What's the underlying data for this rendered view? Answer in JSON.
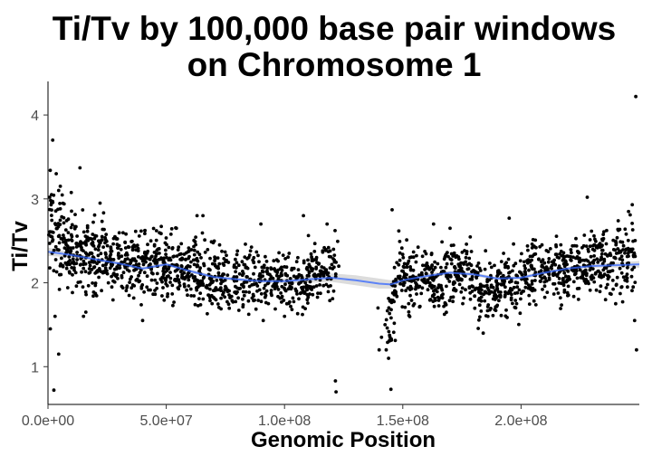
{
  "chart_data": {
    "type": "scatter",
    "title_lines": [
      "Ti/Tv by 100,000 base pair windows",
      "on Chromosome 1"
    ],
    "xlabel": "Genomic Position",
    "ylabel": "Ti/Tv",
    "xlim": [
      0,
      250000000
    ],
    "ylim": [
      0.55,
      4.4
    ],
    "x_ticks": [
      0,
      50000000,
      100000000,
      150000000,
      200000000
    ],
    "x_tick_labels": [
      "0.0e+00",
      "5.0e+07",
      "1.0e+08",
      "1.5e+08",
      "2.0e+08"
    ],
    "y_ticks": [
      1,
      2,
      3,
      4
    ],
    "y_tick_labels": [
      "1",
      "2",
      "3",
      "4"
    ],
    "grid": false,
    "point_color": "#000000",
    "smooth_color": "#3366ff",
    "ribbon_color": "#bfbfbf",
    "trend": {
      "name": "loess smooth",
      "x": [
        0,
        10000000,
        20000000,
        30000000,
        40000000,
        50000000,
        60000000,
        70000000,
        80000000,
        90000000,
        100000000,
        110000000,
        120000000,
        130000000,
        140000000,
        145000000,
        150000000,
        160000000,
        170000000,
        180000000,
        190000000,
        200000000,
        210000000,
        220000000,
        230000000,
        240000000,
        250000000
      ],
      "y": [
        2.37,
        2.33,
        2.28,
        2.23,
        2.17,
        2.22,
        2.14,
        2.07,
        2.04,
        2.02,
        2.02,
        2.04,
        2.06,
        2.03,
        1.99,
        1.98,
        2.03,
        2.08,
        2.12,
        2.1,
        2.05,
        2.06,
        2.12,
        2.17,
        2.2,
        2.21,
        2.22
      ],
      "ribbon_halfwidth": [
        0.05,
        0.03,
        0.02,
        0.02,
        0.02,
        0.02,
        0.02,
        0.02,
        0.02,
        0.02,
        0.03,
        0.04,
        0.05,
        0.06,
        0.06,
        0.05,
        0.04,
        0.03,
        0.02,
        0.02,
        0.02,
        0.02,
        0.02,
        0.02,
        0.02,
        0.03,
        0.04
      ]
    },
    "density": {
      "region_edges": [
        0,
        3000000,
        10000000,
        20000000,
        30000000,
        40000000,
        50000000,
        60000000,
        70000000,
        80000000,
        90000000,
        100000000,
        110000000,
        120000000,
        123000000,
        143000000,
        150000000,
        160000000,
        170000000,
        180000000,
        190000000,
        200000000,
        210000000,
        220000000,
        230000000,
        240000000,
        248500000
      ],
      "counts": [
        25,
        75,
        110,
        100,
        95,
        100,
        100,
        95,
        85,
        75,
        80,
        85,
        85,
        15,
        0,
        55,
        90,
        90,
        95,
        90,
        85,
        85,
        95,
        90,
        90,
        75
      ],
      "level": [
        2.65,
        2.5,
        2.35,
        2.3,
        2.25,
        2.2,
        2.15,
        2.1,
        2.05,
        2.05,
        2.05,
        2.0,
        2.15,
        2.2,
        0,
        1.7,
        2.05,
        2.05,
        2.1,
        1.9,
        1.95,
        2.15,
        2.15,
        2.2,
        2.25,
        2.3
      ],
      "spread": [
        0.3,
        0.25,
        0.22,
        0.2,
        0.2,
        0.2,
        0.2,
        0.2,
        0.18,
        0.18,
        0.18,
        0.18,
        0.18,
        0.2,
        0,
        0.3,
        0.18,
        0.18,
        0.18,
        0.17,
        0.18,
        0.18,
        0.18,
        0.18,
        0.2,
        0.2
      ]
    },
    "outliers": [
      {
        "x": 2000000,
        "y": 3.7
      },
      {
        "x": 3500000,
        "y": 3.3
      },
      {
        "x": 4500000,
        "y": 3.1
      },
      {
        "x": 5200000,
        "y": 3.15
      },
      {
        "x": 1500000,
        "y": 3.05
      },
      {
        "x": 13500000,
        "y": 3.37
      },
      {
        "x": 22000000,
        "y": 2.95
      },
      {
        "x": 3000000,
        "y": 1.6
      },
      {
        "x": 4500000,
        "y": 1.15
      },
      {
        "x": 1000000,
        "y": 1.45
      },
      {
        "x": 2500000,
        "y": 0.72
      },
      {
        "x": 16000000,
        "y": 1.65
      },
      {
        "x": 15000000,
        "y": 1.6
      },
      {
        "x": 27000000,
        "y": 1.95
      },
      {
        "x": 40000000,
        "y": 1.55
      },
      {
        "x": 63000000,
        "y": 2.8
      },
      {
        "x": 65500000,
        "y": 2.8
      },
      {
        "x": 108000000,
        "y": 2.8
      },
      {
        "x": 118000000,
        "y": 2.7
      },
      {
        "x": 121500000,
        "y": 0.83
      },
      {
        "x": 121800000,
        "y": 0.7
      },
      {
        "x": 145500000,
        "y": 2.87
      },
      {
        "x": 145000000,
        "y": 0.73
      },
      {
        "x": 163000000,
        "y": 2.7
      },
      {
        "x": 170000000,
        "y": 2.65
      },
      {
        "x": 195000000,
        "y": 2.77
      },
      {
        "x": 228000000,
        "y": 3.02
      },
      {
        "x": 247000000,
        "y": 2.93
      },
      {
        "x": 248500000,
        "y": 4.22
      },
      {
        "x": 248000000,
        "y": 1.55
      },
      {
        "x": 248800000,
        "y": 1.2
      },
      {
        "x": 245000000,
        "y": 1.95
      },
      {
        "x": 184000000,
        "y": 1.4
      },
      {
        "x": 186000000,
        "y": 1.6
      },
      {
        "x": 91000000,
        "y": 1.55
      },
      {
        "x": 100000000,
        "y": 1.6
      },
      {
        "x": 240000000,
        "y": 1.75
      },
      {
        "x": 140000000,
        "y": 1.2
      },
      {
        "x": 141000000,
        "y": 1.35
      },
      {
        "x": 143000000,
        "y": 1.2
      },
      {
        "x": 142500000,
        "y": 1.5
      },
      {
        "x": 144000000,
        "y": 1.1
      },
      {
        "x": 139500000,
        "y": 1.7
      },
      {
        "x": 90000000,
        "y": 2.7
      }
    ]
  }
}
